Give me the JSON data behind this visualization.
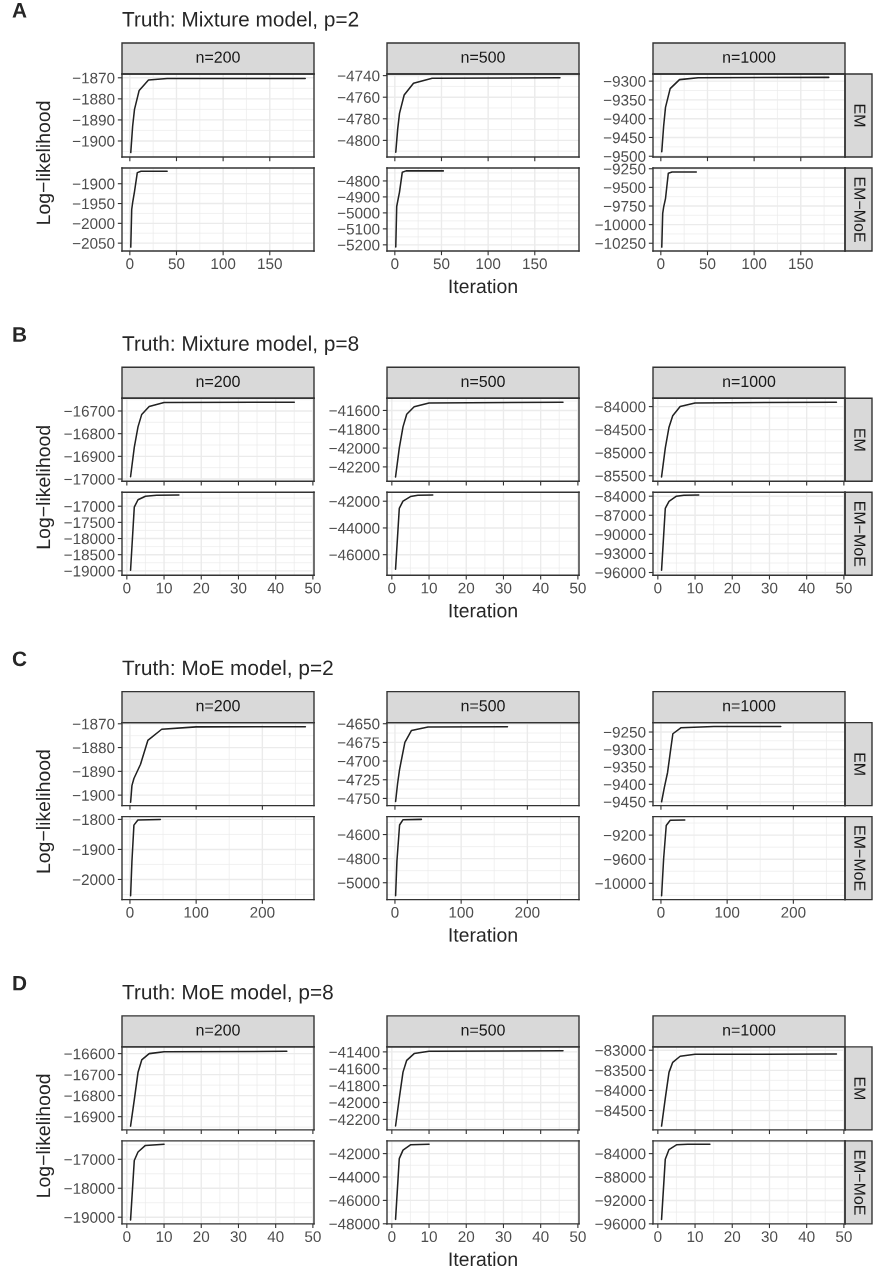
{
  "chart_data": [
    {
      "type": "line",
      "title": "n=200",
      "ylabel": "Log−likelihood",
      "annotations": [
        "A",
        "Truth: Mixture model, p=2"
      ],
      "color": "#222222",
      "grid": true,
      "tick_labels": "y",
      "xlim": [
        -8.4,
        197.4
      ],
      "xticks": [
        0,
        50,
        100,
        150
      ],
      "ylim": [
        -1907.6,
        -1868.2
      ],
      "yticks": [
        {
          "value": -1900,
          "label": "−1900"
        },
        {
          "value": -1890,
          "label": "−1890"
        },
        {
          "value": -1880,
          "label": "−1880"
        },
        {
          "value": -1870,
          "label": "−1870"
        }
      ],
      "x": [
        1,
        3,
        5,
        10,
        20,
        40,
        188
      ],
      "values": [
        -1905.5,
        -1893,
        -1885,
        -1876,
        -1871,
        -1870.3,
        -1870.3
      ]
    },
    {
      "type": "line",
      "title": "n=500",
      "color": "#222222",
      "grid": true,
      "tick_labels": "y",
      "xlim": [
        -8.4,
        197.4
      ],
      "xticks": [
        0,
        50,
        100,
        150
      ],
      "ylim": [
        -4815.4,
        -4738.5
      ],
      "yticks": [
        {
          "value": -4800,
          "label": "−4800"
        },
        {
          "value": -4780,
          "label": "−4780"
        },
        {
          "value": -4760,
          "label": "−4760"
        },
        {
          "value": -4740,
          "label": "−4740"
        }
      ],
      "x": [
        1,
        3,
        5,
        10,
        20,
        40,
        177
      ],
      "values": [
        -4811,
        -4790,
        -4775,
        -4758,
        -4747,
        -4742.5,
        -4742
      ]
    },
    {
      "type": "line",
      "title": "n=1000",
      "y2label": "EM",
      "color": "#222222",
      "grid": true,
      "tick_labels": "y",
      "xlim": [
        -8.4,
        197.4
      ],
      "xticks": [
        0,
        50,
        100,
        150
      ],
      "ylim": [
        -9502,
        -9281
      ],
      "yticks": [
        {
          "value": -9500,
          "label": "−9500"
        },
        {
          "value": -9450,
          "label": "−9450"
        },
        {
          "value": -9400,
          "label": "−9400"
        },
        {
          "value": -9350,
          "label": "−9350"
        },
        {
          "value": -9300,
          "label": "−9300"
        }
      ],
      "x": [
        1,
        3,
        5,
        10,
        20,
        40,
        180
      ],
      "values": [
        -9488,
        -9420,
        -9370,
        -9320,
        -9296,
        -9291,
        -9290
      ]
    },
    {
      "type": "line",
      "color": "#222222",
      "grid": true,
      "xlim": [
        -8.4,
        197.4
      ],
      "xticks": [
        0,
        50,
        100,
        150
      ],
      "ylim": [
        -2069.8,
        -1860.3
      ],
      "yticks": [
        {
          "value": -2050,
          "label": "−2050"
        },
        {
          "value": -2000,
          "label": "−2000"
        },
        {
          "value": -1950,
          "label": "−1950"
        },
        {
          "value": -1900,
          "label": "−1900"
        }
      ],
      "x": [
        1,
        2,
        3,
        5,
        8,
        12,
        40
      ],
      "values": [
        -2060,
        -1965,
        -1948,
        -1920,
        -1872,
        -1868.5,
        -1868.5
      ]
    },
    {
      "type": "line",
      "xlabel": "Iteration",
      "color": "#222222",
      "grid": true,
      "xlim": [
        -8.4,
        197.4
      ],
      "xticks": [
        0,
        50,
        100,
        150
      ],
      "ylim": [
        -5238.6,
        -4719
      ],
      "yticks": [
        {
          "value": -5200,
          "label": "−5200"
        },
        {
          "value": -5100,
          "label": "−5100"
        },
        {
          "value": -5000,
          "label": "−5000"
        },
        {
          "value": -4900,
          "label": "−4900"
        },
        {
          "value": -4800,
          "label": "−4800"
        }
      ],
      "x": [
        1,
        2,
        3,
        5,
        8,
        12,
        52
      ],
      "values": [
        -5214,
        -4960,
        -4930,
        -4870,
        -4745,
        -4737,
        -4737
      ]
    },
    {
      "type": "line",
      "y2label": "EM−MoE",
      "color": "#222222",
      "grid": true,
      "xlim": [
        -8.4,
        197.4
      ],
      "xticks": [
        0,
        50,
        100,
        150
      ],
      "ylim": [
        -10354,
        -9240
      ],
      "yticks": [
        {
          "value": -10250,
          "label": "−10250"
        },
        {
          "value": -10000,
          "label": "−10000"
        },
        {
          "value": -9750,
          "label": "−9750"
        },
        {
          "value": -9500,
          "label": "−9500"
        },
        {
          "value": -9250,
          "label": "−9250"
        }
      ],
      "x": [
        1,
        2,
        3,
        5,
        8,
        12,
        38
      ],
      "values": [
        -10302,
        -9850,
        -9765,
        -9650,
        -9310,
        -9295,
        -9295
      ]
    },
    {
      "type": "line",
      "title": "n=200",
      "ylabel": "Log−likelihood",
      "annotations": [
        "B",
        "Truth: Mixture model, p=8"
      ],
      "color": "#222222",
      "grid": true,
      "tick_labels": "y",
      "xlim": [
        -1.3,
        50.3
      ],
      "xticks": [
        0,
        10,
        20,
        30,
        40,
        50
      ],
      "ylim": [
        -17010,
        -16644
      ],
      "yticks": [
        {
          "value": -17000,
          "label": "−17000"
        },
        {
          "value": -16900,
          "label": "−16900"
        },
        {
          "value": -16800,
          "label": "−16800"
        },
        {
          "value": -16700,
          "label": "−16700"
        }
      ],
      "x": [
        1,
        2,
        3,
        4,
        6,
        10,
        45
      ],
      "values": [
        -16990,
        -16860,
        -16770,
        -16715,
        -16680,
        -16663,
        -16661
      ]
    },
    {
      "type": "line",
      "title": "n=500",
      "color": "#222222",
      "grid": true,
      "tick_labels": "y",
      "xlim": [
        -1.3,
        50.3
      ],
      "xticks": [
        0,
        10,
        20,
        30,
        40,
        50
      ],
      "ylim": [
        -42353,
        -41471
      ],
      "yticks": [
        {
          "value": -42200,
          "label": "−42200"
        },
        {
          "value": -42000,
          "label": "−42000"
        },
        {
          "value": -41800,
          "label": "−41800"
        },
        {
          "value": -41600,
          "label": "−41600"
        }
      ],
      "x": [
        1,
        2,
        3,
        4,
        6,
        10,
        46
      ],
      "values": [
        -42306,
        -42000,
        -41775,
        -41640,
        -41560,
        -41520,
        -41512
      ]
    },
    {
      "type": "line",
      "title": "n=1000",
      "y2label": "EM",
      "color": "#222222",
      "grid": true,
      "tick_labels": "y",
      "xlim": [
        -1.3,
        50.3
      ],
      "xticks": [
        0,
        10,
        20,
        30,
        40,
        50
      ],
      "ylim": [
        -85620,
        -83820
      ],
      "yticks": [
        {
          "value": -85500,
          "label": "−85500"
        },
        {
          "value": -85000,
          "label": "−85000"
        },
        {
          "value": -84500,
          "label": "−84500"
        },
        {
          "value": -84000,
          "label": "−84000"
        }
      ],
      "x": [
        1,
        2,
        3,
        4,
        6,
        10,
        48
      ],
      "values": [
        -85524,
        -84900,
        -84446,
        -84200,
        -84000,
        -83920,
        -83904
      ]
    },
    {
      "type": "line",
      "color": "#222222",
      "grid": true,
      "xlim": [
        -1.3,
        50.3
      ],
      "xticks": [
        0,
        10,
        20,
        30,
        40,
        50
      ],
      "ylim": [
        -19138,
        -16569
      ],
      "yticks": [
        {
          "value": -19000,
          "label": "−19000"
        },
        {
          "value": -18500,
          "label": "−18500"
        },
        {
          "value": -18000,
          "label": "−18000"
        },
        {
          "value": -17500,
          "label": "−17500"
        },
        {
          "value": -17000,
          "label": "−17000"
        }
      ],
      "x": [
        1,
        2,
        3,
        5,
        8,
        14
      ],
      "values": [
        -18983,
        -17030,
        -16800,
        -16690,
        -16660,
        -16655
      ]
    },
    {
      "type": "line",
      "xlabel": "Iteration",
      "color": "#222222",
      "grid": true,
      "xlim": [
        -1.3,
        50.3
      ],
      "xticks": [
        0,
        10,
        20,
        30,
        40,
        50
      ],
      "ylim": [
        -47542,
        -41333
      ],
      "yticks": [
        {
          "value": -46000,
          "label": "−46000"
        },
        {
          "value": -44000,
          "label": "−44000"
        },
        {
          "value": -42000,
          "label": "−42000"
        }
      ],
      "x": [
        1,
        2,
        3,
        5,
        7,
        11
      ],
      "values": [
        -47083,
        -42540,
        -42000,
        -41650,
        -41560,
        -41542
      ]
    },
    {
      "type": "line",
      "y2label": "EM−MoE",
      "color": "#222222",
      "grid": true,
      "xlim": [
        -1.3,
        50.3
      ],
      "xticks": [
        0,
        10,
        20,
        30,
        40,
        50
      ],
      "ylim": [
        -96438,
        -83387
      ],
      "yticks": [
        {
          "value": -96000,
          "label": "−96000"
        },
        {
          "value": -93000,
          "label": "−93000"
        },
        {
          "value": -90000,
          "label": "−90000"
        },
        {
          "value": -87000,
          "label": "−87000"
        },
        {
          "value": -84000,
          "label": "−84000"
        }
      ],
      "x": [
        1,
        2,
        3,
        5,
        7,
        11
      ],
      "values": [
        -95650,
        -85930,
        -84800,
        -84000,
        -83850,
        -83825
      ]
    },
    {
      "type": "line",
      "title": "n=200",
      "ylabel": "Log−likelihood",
      "annotations": [
        "C",
        "Truth: MoE model, p=2"
      ],
      "color": "#222222",
      "grid": true,
      "tick_labels": "y",
      "xlim": [
        -12,
        278
      ],
      "xticks": [
        0,
        100,
        200
      ],
      "ylim": [
        -1904.4,
        -1869.5
      ],
      "yticks": [
        {
          "value": -1900,
          "label": "−1900"
        },
        {
          "value": -1890,
          "label": "−1890"
        },
        {
          "value": -1880,
          "label": "−1880"
        },
        {
          "value": -1870,
          "label": "−1870"
        }
      ],
      "x": [
        1,
        3,
        6,
        16,
        27,
        48,
        100,
        265
      ],
      "values": [
        -1903,
        -1896,
        -1893,
        -1887,
        -1877,
        -1872.3,
        -1871.3,
        -1871.2
      ]
    },
    {
      "type": "line",
      "title": "n=500",
      "color": "#222222",
      "grid": true,
      "tick_labels": "y",
      "xlim": [
        -12,
        278
      ],
      "xticks": [
        0,
        100,
        200
      ],
      "ylim": [
        -4759.6,
        -4648.5
      ],
      "yticks": [
        {
          "value": -4750,
          "label": "−4750"
        },
        {
          "value": -4725,
          "label": "−4725"
        },
        {
          "value": -4700,
          "label": "−4700"
        },
        {
          "value": -4675,
          "label": "−4675"
        },
        {
          "value": -4650,
          "label": "−4650"
        }
      ],
      "x": [
        1,
        4,
        7,
        15,
        25,
        50,
        170
      ],
      "values": [
        -4754,
        -4730,
        -4711,
        -4675,
        -4659,
        -4654.5,
        -4654
      ]
    },
    {
      "type": "line",
      "title": "n=1000",
      "y2label": "EM",
      "color": "#222222",
      "grid": true,
      "tick_labels": "y",
      "xlim": [
        -12,
        278
      ],
      "xticks": [
        0,
        100,
        200
      ],
      "ylim": [
        -9461,
        -9223
      ],
      "yticks": [
        {
          "value": -9450,
          "label": "−9450"
        },
        {
          "value": -9400,
          "label": "−9400"
        },
        {
          "value": -9350,
          "label": "−9350"
        },
        {
          "value": -9300,
          "label": "−9300"
        },
        {
          "value": -9250,
          "label": "−9250"
        }
      ],
      "x": [
        1,
        5,
        10,
        14,
        18,
        30,
        80,
        181
      ],
      "values": [
        -9450,
        -9410,
        -9366,
        -9310,
        -9255,
        -9238,
        -9234,
        -9234
      ]
    },
    {
      "type": "line",
      "color": "#222222",
      "grid": true,
      "xlim": [
        -12,
        278
      ],
      "xticks": [
        0,
        100,
        200
      ],
      "ylim": [
        -2067,
        -1790.7
      ],
      "yticks": [
        {
          "value": -2000,
          "label": "−2000"
        },
        {
          "value": -1900,
          "label": "−1900"
        },
        {
          "value": -1800,
          "label": "−1800"
        }
      ],
      "x": [
        1,
        3,
        6,
        12,
        46
      ],
      "values": [
        -2054,
        -1940,
        -1819,
        -1802,
        -1800
      ]
    },
    {
      "type": "line",
      "xlabel": "Iteration",
      "color": "#222222",
      "grid": true,
      "xlim": [
        -12,
        278
      ],
      "xticks": [
        0,
        100,
        200
      ],
      "ylim": [
        -5140,
        -4451
      ],
      "yticks": [
        {
          "value": -5000,
          "label": "−5000"
        },
        {
          "value": -4800,
          "label": "−4800"
        },
        {
          "value": -4600,
          "label": "−4600"
        }
      ],
      "x": [
        1,
        3,
        7,
        12,
        40
      ],
      "values": [
        -5107,
        -4820,
        -4521,
        -4478,
        -4474
      ]
    },
    {
      "type": "line",
      "y2label": "EM−MoE",
      "color": "#222222",
      "grid": true,
      "xlim": [
        -12,
        278
      ],
      "xticks": [
        0,
        100,
        200
      ],
      "ylim": [
        -10270,
        -8893
      ],
      "yticks": [
        {
          "value": -10000,
          "label": "−10000"
        },
        {
          "value": -9600,
          "label": "−9600"
        },
        {
          "value": -9200,
          "label": "−9200"
        }
      ],
      "x": [
        1,
        4,
        8,
        14,
        36
      ],
      "values": [
        -10205,
        -9600,
        -9040,
        -8955,
        -8949
      ]
    },
    {
      "type": "line",
      "title": "n=200",
      "ylabel": "Log−likelihood",
      "annotations": [
        "D",
        "Truth: MoE model, p=8"
      ],
      "color": "#222222",
      "grid": true,
      "tick_labels": "y",
      "xlim": [
        -1.3,
        50.3
      ],
      "xticks": [
        0,
        10,
        20,
        30,
        40,
        50
      ],
      "ylim": [
        -16963,
        -16568
      ],
      "yticks": [
        {
          "value": -16900,
          "label": "−16900"
        },
        {
          "value": -16800,
          "label": "−16800"
        },
        {
          "value": -16700,
          "label": "−16700"
        },
        {
          "value": -16600,
          "label": "−16600"
        }
      ],
      "x": [
        1,
        2,
        3,
        4,
        6,
        10,
        43
      ],
      "values": [
        -16945,
        -16820,
        -16690,
        -16630,
        -16600,
        -16591,
        -16589
      ]
    },
    {
      "type": "line",
      "title": "n=500",
      "color": "#222222",
      "grid": true,
      "tick_labels": "y",
      "xlim": [
        -1.3,
        50.3
      ],
      "xticks": [
        0,
        10,
        20,
        30,
        40,
        50
      ],
      "ylim": [
        -42325,
        -41341
      ],
      "yticks": [
        {
          "value": -42200,
          "label": "−42200"
        },
        {
          "value": -42000,
          "label": "−42000"
        },
        {
          "value": -41800,
          "label": "−41800"
        },
        {
          "value": -41600,
          "label": "−41600"
        },
        {
          "value": -41400,
          "label": "−41400"
        }
      ],
      "x": [
        1,
        2,
        3,
        4,
        6,
        10,
        46
      ],
      "values": [
        -42279,
        -41950,
        -41640,
        -41500,
        -41420,
        -41392,
        -41387
      ]
    },
    {
      "type": "line",
      "title": "n=1000",
      "y2label": "EM",
      "color": "#222222",
      "grid": true,
      "tick_labels": "y",
      "xlim": [
        -1.3,
        50.3
      ],
      "xticks": [
        0,
        10,
        20,
        30,
        40,
        50
      ],
      "ylim": [
        -84982,
        -82917
      ],
      "yticks": [
        {
          "value": -84500,
          "label": "−84500"
        },
        {
          "value": -84000,
          "label": "−84000"
        },
        {
          "value": -83500,
          "label": "−83500"
        },
        {
          "value": -83000,
          "label": "−83000"
        }
      ],
      "x": [
        1,
        2,
        3,
        4,
        6,
        10,
        48
      ],
      "values": [
        -84887,
        -84200,
        -83551,
        -83300,
        -83150,
        -83100,
        -83096
      ]
    },
    {
      "type": "line",
      "color": "#222222",
      "grid": true,
      "xlim": [
        -1.3,
        50.3
      ],
      "xticks": [
        0,
        10,
        20,
        30,
        40,
        50
      ],
      "ylim": [
        -19231,
        -16365
      ],
      "yticks": [
        {
          "value": -19000,
          "label": "−19000"
        },
        {
          "value": -18000,
          "label": "−18000"
        },
        {
          "value": -17000,
          "label": "−17000"
        }
      ],
      "x": [
        1,
        2,
        3,
        5,
        10
      ],
      "values": [
        -19096,
        -17040,
        -16750,
        -16520,
        -16480
      ]
    },
    {
      "type": "line",
      "xlabel": "Iteration",
      "color": "#222222",
      "grid": true,
      "xlim": [
        -1.3,
        50.3
      ],
      "xticks": [
        0,
        10,
        20,
        30,
        40,
        50
      ],
      "ylim": [
        -48010,
        -40914
      ],
      "yticks": [
        {
          "value": -48000,
          "label": "−48000"
        },
        {
          "value": -46000,
          "label": "−46000"
        },
        {
          "value": -44000,
          "label": "−44000"
        },
        {
          "value": -42000,
          "label": "−42000"
        }
      ],
      "x": [
        1,
        2,
        3,
        5,
        10
      ],
      "values": [
        -47622,
        -42425,
        -41700,
        -41250,
        -41197
      ]
    },
    {
      "type": "line",
      "y2label": "EM−MoE",
      "color": "#222222",
      "grid": true,
      "xlim": [
        -1.3,
        50.3
      ],
      "xticks": [
        0,
        10,
        20,
        30,
        40,
        50
      ],
      "ylim": [
        -96010,
        -81825
      ],
      "yticks": [
        {
          "value": -96000,
          "label": "−96000"
        },
        {
          "value": -92000,
          "label": "−92000"
        },
        {
          "value": -88000,
          "label": "−88000"
        },
        {
          "value": -84000,
          "label": "−84000"
        }
      ],
      "x": [
        1,
        2,
        3,
        5,
        8,
        14
      ],
      "values": [
        -95250,
        -84945,
        -83300,
        -82500,
        -82400,
        -82392
      ]
    }
  ]
}
